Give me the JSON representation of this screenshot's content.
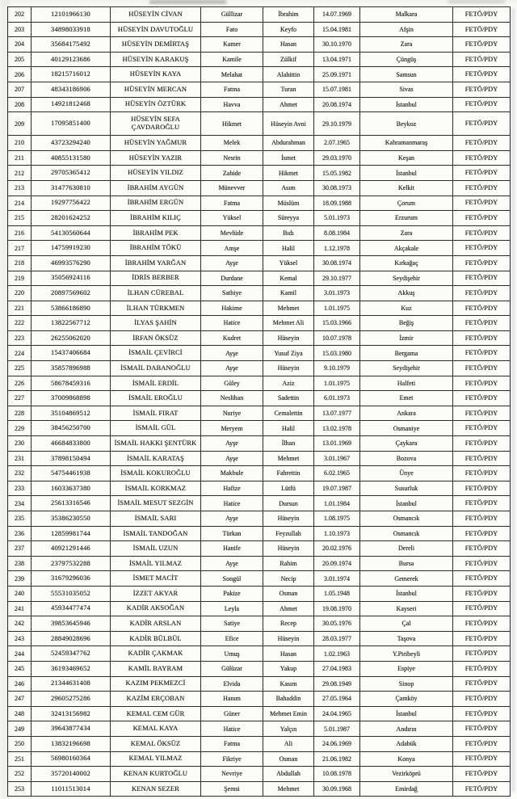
{
  "document": {
    "kind": "scanned-list-page",
    "organization_label": "FETÖ/PDY",
    "row_range": {
      "first": "202",
      "last": "253"
    }
  },
  "table": {
    "column_names": [
      "row-number-cell",
      "national-id-cell",
      "name-cell",
      "mother-name-cell",
      "father-name-cell",
      "birth-date-cell",
      "birth-place-cell",
      "organization-cell"
    ],
    "rows": [
      [
        "202",
        "12101966130",
        "HÜSEYİN CİVAN",
        "Güllizar",
        "İbrahim",
        "14.07.1969",
        "Malkara",
        "FETÖ/PDY"
      ],
      [
        "203",
        "34898033918",
        "HÜSEYİN DAVUTOĞLU",
        "Fato",
        "Keyfo",
        "15.04.1981",
        "Afşin",
        "FETÖ/PDY"
      ],
      [
        "204",
        "35684175492",
        "HÜSEYİN DEMİRTAŞ",
        "Kamer",
        "Hasan",
        "30.10.1970",
        "Zara",
        "FETÖ/PDY"
      ],
      [
        "205",
        "40129123686",
        "HÜSEYİN KARAKUŞ",
        "Kamile",
        "Zülkif",
        "13.04.1971",
        "Çüngüş",
        "FETÖ/PDY"
      ],
      [
        "206",
        "18215716012",
        "HÜSEYİN KAYA",
        "Melahat",
        "Alahittin",
        "25.09.1971",
        "Samsun",
        "FETÖ/PDY"
      ],
      [
        "207",
        "48343186906",
        "HÜSEYİN MERCAN",
        "Fatma",
        "Turan",
        "15.07.1981",
        "Sivas",
        "FETÖ/PDY"
      ],
      [
        "208",
        "14921812468",
        "HÜSEYİN ÖZTÜRK",
        "Havva",
        "Ahmet",
        "20.08.1974",
        "İstanbul",
        "FETÖ/PDY"
      ],
      [
        "209",
        "17095851400",
        "HÜSEYİN SEFA ÇAVDAROĞLU",
        "Hikmet",
        "Hüseyin Avni",
        "29.10.1979",
        "Beykoz",
        "FETÖ/PDY"
      ],
      [
        "210",
        "43723294240",
        "HÜSEYİN YAĞMUR",
        "Melek",
        "Abdurahman",
        "2.07.1965",
        "Kahramanmaraş",
        "FETÖ/PDY"
      ],
      [
        "211",
        "40855131580",
        "HÜSEYİN YAZIR",
        "Nesrin",
        "İsmet",
        "29.03.1970",
        "Keşan",
        "FETÖ/PDY"
      ],
      [
        "212",
        "29705365412",
        "HÜSEYİN YILDIZ",
        "Zahide",
        "Hikmet",
        "15.05.1982",
        "İstanbul",
        "FETÖ/PDY"
      ],
      [
        "213",
        "31477630810",
        "İBRAHİM AYGÜN",
        "Münevver",
        "Asım",
        "30.08.1973",
        "Kelkit",
        "FETÖ/PDY"
      ],
      [
        "214",
        "19297756422",
        "İBRAHİM ERGÜN",
        "Fatma",
        "Müslüm",
        "18.09.1988",
        "Çorum",
        "FETÖ/PDY"
      ],
      [
        "215",
        "28201624252",
        "İBRAHİM KILIÇ",
        "Yüksel",
        "Süreyya",
        "5.01.1973",
        "Erzurum",
        "FETÖ/PDY"
      ],
      [
        "216",
        "54130560644",
        "İBRAHİM PEK",
        "Mevlüde",
        "Bıdı",
        "8.08.1984",
        "Zara",
        "FETÖ/PDY"
      ],
      [
        "217",
        "14759919230",
        "İBRAHİM TÖKÜ",
        "Amşe",
        "Halil",
        "1.12.1978",
        "Akçakale",
        "FETÖ/PDY"
      ],
      [
        "218",
        "46993576290",
        "İBRAHİM YARĞAN",
        "Ayşe",
        "Yüksel",
        "30.08.1974",
        "Kırkağaç",
        "FETÖ/PDY"
      ],
      [
        "219",
        "35056924116",
        "İDRİS BERBER",
        "Durdane",
        "Kemal",
        "29.10.1977",
        "Seydişehir",
        "FETÖ/PDY"
      ],
      [
        "220",
        "20897569602",
        "İLHAN CÜREBAL",
        "Sathiye",
        "Kamil",
        "3.01.1973",
        "Akkuş",
        "FETÖ/PDY"
      ],
      [
        "221",
        "53866186890",
        "İLHAN TÜRKMEN",
        "Hakime",
        "Mehmet",
        "1.01.1975",
        "Kuz",
        "FETÖ/PDY"
      ],
      [
        "222",
        "13822567712",
        "İLYAS ŞAHİN",
        "Hatice",
        "Mehmet Ali",
        "15.03.1966",
        "Beğiş",
        "FETÖ/PDY"
      ],
      [
        "223",
        "26255062020",
        "İRFAN ÖKSÜZ",
        "Kudret",
        "Hüseyin",
        "10.07.1978",
        "İzmir",
        "FETÖ/PDY"
      ],
      [
        "224",
        "15437406684",
        "İSMAİL ÇEVİRCİ",
        "Ayşe",
        "Yusuf Ziya",
        "15.03.1980",
        "Bergama",
        "FETÖ/PDY"
      ],
      [
        "225",
        "35857896988",
        "İSMAİL DABANOĞLU",
        "Ayşe",
        "Hüseyin",
        "9.10.1979",
        "Seydişehir",
        "FETÖ/PDY"
      ],
      [
        "226",
        "58678459316",
        "İSMAİL ERDİL",
        "Güley",
        "Aziz",
        "1.01.1975",
        "Halfeti",
        "FETÖ/PDY"
      ],
      [
        "227",
        "37009868898",
        "İSMAİL EROĞLU",
        "Neslihan",
        "Sadettin",
        "6.01.1973",
        "Emet",
        "FETÖ/PDY"
      ],
      [
        "228",
        "35104869512",
        "İSMAİL FIRAT",
        "Nuriye",
        "Cemalettin",
        "13.07.1977",
        "Ankara",
        "FETÖ/PDY"
      ],
      [
        "229",
        "38456250700",
        "İSMAİL GÜL",
        "Meryem",
        "Halil",
        "13.02.1978",
        "Osmaniye",
        "FETÖ/PDY"
      ],
      [
        "230",
        "46684833800",
        "İSMAİL HAKKI ŞENTÜRK",
        "Ayşe",
        "İlhan",
        "13.01.1969",
        "Çaykara",
        "FETÖ/PDY"
      ],
      [
        "231",
        "37898150494",
        "İSMAİL KARATAŞ",
        "Ayşe",
        "Mehmet",
        "3.01.1967",
        "Bozova",
        "FETÖ/PDY"
      ],
      [
        "232",
        "54754461938",
        "İSMAİL KOKUROĞLU",
        "Makbule",
        "Fahrettin",
        "6.02.1965",
        "Ünye",
        "FETÖ/PDY"
      ],
      [
        "233",
        "16033637380",
        "İSMAİL KORKMAZ",
        "Hafize",
        "Lütfü",
        "19.07.1987",
        "Susurluk",
        "FETÖ/PDY"
      ],
      [
        "234",
        "25613316546",
        "İSMAİL MESUT SEZGİN",
        "Hatice",
        "Dursun",
        "1.01.1984",
        "İstanbul",
        "FETÖ/PDY"
      ],
      [
        "235",
        "35386230550",
        "İSMAİL SARI",
        "Ayşe",
        "Hüseyin",
        "1.08.1975",
        "Osmancık",
        "FETÖ/PDY"
      ],
      [
        "236",
        "12859981744",
        "İSMAİL TANDOĞAN",
        "Türkan",
        "Feyzullah",
        "1.10.1973",
        "Osmancık",
        "FETÖ/PDY"
      ],
      [
        "237",
        "40921291446",
        "İSMAİL UZUN",
        "Hanife",
        "Hüseyin",
        "20.02.1976",
        "Dereli",
        "FETÖ/PDY"
      ],
      [
        "238",
        "23797532288",
        "İSMAİL YILMAZ",
        "Ayşe",
        "Rahim",
        "20.09.1974",
        "Bursa",
        "FETÖ/PDY"
      ],
      [
        "239",
        "31679296036",
        "İSMET MACİT",
        "Songül",
        "Necip",
        "3.01.1974",
        "Gemerek",
        "FETÖ/PDY"
      ],
      [
        "240",
        "55531035052",
        "İZZET AKYAR",
        "Pakize",
        "Osman",
        "1.05.1948",
        "İstanbul",
        "FETÖ/PDY"
      ],
      [
        "241",
        "45934477474",
        "KADİR AKSOĞAN",
        "Leyla",
        "Ahmet",
        "19.08.1970",
        "Kayseri",
        "FETÖ/PDY"
      ],
      [
        "242",
        "39853645946",
        "KADİR ARSLAN",
        "Satiye",
        "Recep",
        "30.05.1976",
        "Çal",
        "FETÖ/PDY"
      ],
      [
        "243",
        "28849028696",
        "KADİR BÜLBÜL",
        "Efice",
        "Hüseyin",
        "28.03.1977",
        "Taşova",
        "FETÖ/PDY"
      ],
      [
        "244",
        "52459347762",
        "KADİR ÇAKMAK",
        "Umuş",
        "Hasan",
        "1.02.1963",
        "Y.Piribeyli",
        "FETÖ/PDY"
      ],
      [
        "245",
        "36193469652",
        "KAMİL BAYRAM",
        "Gülüzar",
        "Yakup",
        "27.04.1983",
        "Espiye",
        "FETÖ/PDY"
      ],
      [
        "246",
        "21344631408",
        "KAZIM PEKMEZCİ",
        "Elvida",
        "Kasım",
        "29.08.1949",
        "Sinop",
        "FETÖ/PDY"
      ],
      [
        "247",
        "29605275286",
        "KAZİM ERÇOBAN",
        "Hanım",
        "Bahaddin",
        "27.05.1964",
        "Çamköy",
        "FETÖ/PDY"
      ],
      [
        "248",
        "32413156982",
        "KEMAL CEM GÜR",
        "Güner",
        "Mehmet Emin",
        "24.04.1965",
        "İstanbul",
        "FETÖ/PDY"
      ],
      [
        "249",
        "39643877434",
        "KEMAL KAYA",
        "Hatice",
        "Yalçın",
        "5.01.1987",
        "Andırın",
        "FETÖ/PDY"
      ],
      [
        "250",
        "13832196698",
        "KEMAL ÖKSÜZ",
        "Fatma",
        "Ali",
        "24.06.1969",
        "Adabük",
        "FETÖ/PDY"
      ],
      [
        "251",
        "56980160364",
        "KEMAL YILMAZ",
        "Fikriye",
        "Osman",
        "21.06.1982",
        "Konya",
        "FETÖ/PDY"
      ],
      [
        "252",
        "35720140002",
        "KENAN KURTOĞLU",
        "Nevriye",
        "Abdullah",
        "10.08.1978",
        "Vezirköprü",
        "FETÖ/PDY"
      ],
      [
        "253",
        "11011513014",
        "KENAN SEZER",
        "Şemsi",
        "Mehmet",
        "30.09.1968",
        "Emirdağ",
        "FETÖ/PDY"
      ]
    ]
  }
}
